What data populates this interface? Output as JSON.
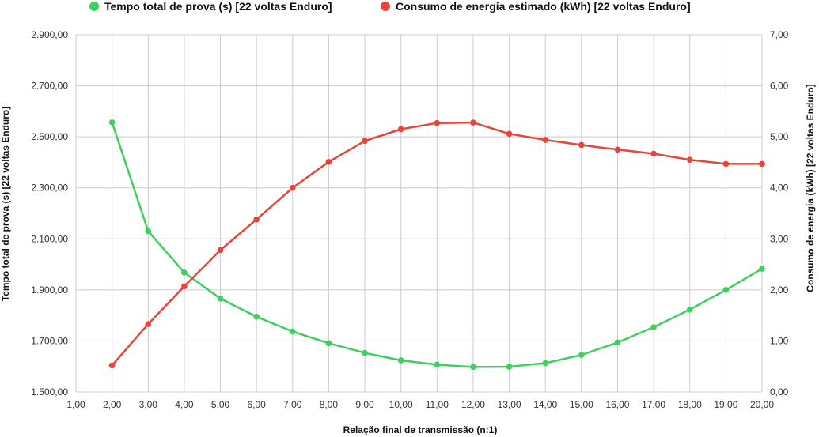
{
  "chart_data": {
    "type": "line",
    "xlabel": "Relação final de transmissão (n:1)",
    "ylabel_left": "Tempo total de prova (s) [22 voltas Enduro]",
    "ylabel_right": "Consumo de energia (kWh) [22 voltas Enduro]",
    "xlim": [
      1,
      20
    ],
    "ylim_left": [
      1500,
      2900
    ],
    "ylim_right": [
      0,
      7
    ],
    "x_ticks": [
      "1,00",
      "2,00",
      "3,00",
      "4,00",
      "5,00",
      "6,00",
      "7,00",
      "8,00",
      "9,00",
      "10,00",
      "11,00",
      "12,00",
      "13,00",
      "14,00",
      "15,00",
      "16,00",
      "17,00",
      "18,00",
      "19,00",
      "20,00"
    ],
    "y_left_ticks": [
      "1.500,00",
      "1.700,00",
      "1.900,00",
      "2.100,00",
      "2.300,00",
      "2.500,00",
      "2.700,00",
      "2.900,00"
    ],
    "y_right_ticks": [
      "0,00",
      "1,00",
      "2,00",
      "3,00",
      "4,00",
      "5,00",
      "6,00",
      "7,00"
    ],
    "legend_position": "top",
    "grid": true,
    "series": [
      {
        "name": "Tempo total de prova (s) [22 voltas Enduro]",
        "axis": "left",
        "color": "#3ecf5e",
        "x": [
          2,
          3,
          4,
          5,
          6,
          7,
          8,
          9,
          10,
          11,
          12,
          13,
          14,
          15,
          16,
          17,
          18,
          19,
          20
        ],
        "values": [
          2557,
          2130,
          1968,
          1866,
          1795,
          1737,
          1691,
          1653,
          1624,
          1607,
          1598,
          1599,
          1613,
          1645,
          1694,
          1754,
          1823,
          1900,
          1983
        ]
      },
      {
        "name": "Consumo de energia estimado (kWh) [22 voltas Enduro]",
        "axis": "right",
        "color": "#e8443a",
        "x": [
          2,
          3,
          4,
          5,
          6,
          7,
          8,
          9,
          10,
          11,
          12,
          13,
          14,
          15,
          16,
          17,
          18,
          19,
          20
        ],
        "values": [
          0.52,
          1.33,
          2.07,
          2.78,
          3.38,
          4.0,
          4.51,
          4.92,
          5.15,
          5.27,
          5.28,
          5.06,
          4.94,
          4.84,
          4.75,
          4.67,
          4.55,
          4.47,
          4.47
        ]
      }
    ]
  }
}
